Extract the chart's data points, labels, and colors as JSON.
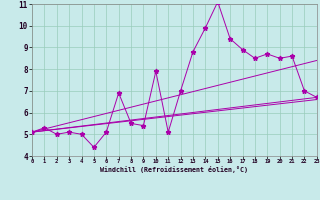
{
  "xlabel": "Windchill (Refroidissement éolien,°C)",
  "bg_color": "#c8eaea",
  "line_color": "#aa00aa",
  "grid_color": "#99ccbb",
  "xmin": 0,
  "xmax": 23,
  "ymin": 4,
  "ymax": 11,
  "series1_x": [
    0,
    1,
    2,
    3,
    4,
    5,
    6,
    7,
    8,
    9,
    10,
    11,
    12,
    13,
    14,
    15,
    16,
    17,
    18,
    19,
    20,
    21,
    22,
    23
  ],
  "series1_y": [
    5.1,
    5.3,
    5.0,
    5.1,
    5.0,
    4.4,
    5.1,
    6.9,
    5.5,
    5.4,
    7.9,
    5.1,
    7.0,
    8.8,
    9.9,
    11.1,
    9.4,
    8.9,
    8.5,
    8.7,
    8.5,
    8.6,
    7.0,
    6.7
  ],
  "series2_x": [
    0,
    23
  ],
  "series2_y": [
    5.1,
    6.6
  ],
  "series3_x": [
    0,
    23
  ],
  "series3_y": [
    5.1,
    8.4
  ],
  "series4_x": [
    0,
    23
  ],
  "series4_y": [
    5.1,
    6.7
  ]
}
